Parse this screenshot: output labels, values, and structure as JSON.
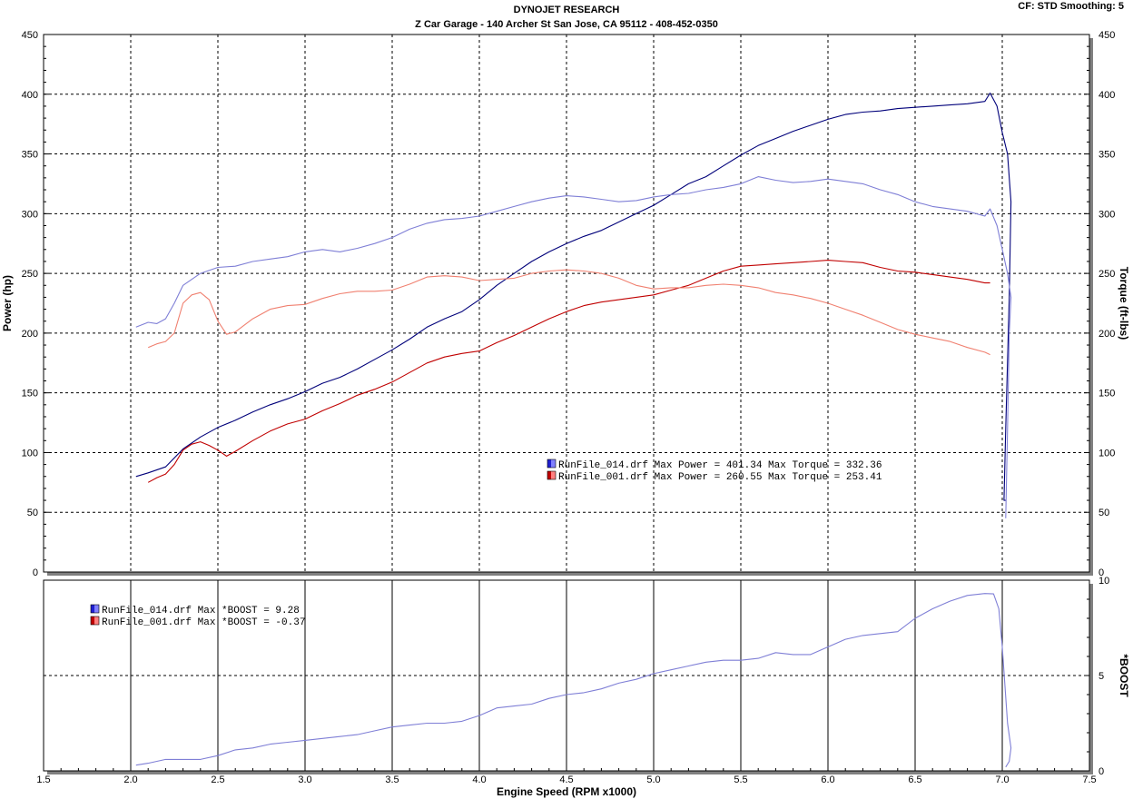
{
  "header": {
    "title": "DYNOJET RESEARCH",
    "subtitle": "Z Car Garage - 140 Archer St San Jose, CA 95112 - 408-452-0350",
    "settings": "CF: STD  Smoothing: 5"
  },
  "colors": {
    "run014": "#00007a",
    "run014_torque": "#7f7fd6",
    "run001": "#c00000",
    "run001_torque": "#f08070",
    "boost": "#7f7fd6",
    "grid": "#000000"
  },
  "chart_data": [
    {
      "type": "line",
      "title": "DYNOJET RESEARCH",
      "xlabel": "Engine Speed (RPM x1000)",
      "ylabel": "Power (hp)",
      "y2label": "Torque (ft-lbs)",
      "xlim": [
        1.5,
        7.5
      ],
      "ylim": [
        0,
        450
      ],
      "y2lim": [
        0,
        450
      ],
      "x_ticks": [
        "1.5",
        "2.0",
        "2.5",
        "3.0",
        "3.5",
        "4.0",
        "4.5",
        "5.0",
        "5.5",
        "6.0",
        "6.5",
        "7.0",
        "7.5"
      ],
      "y_ticks": [
        "0",
        "50",
        "100",
        "150",
        "200",
        "250",
        "300",
        "350",
        "400",
        "450"
      ],
      "y2_ticks": [
        "0",
        "50",
        "100",
        "150",
        "200",
        "250",
        "300",
        "350",
        "400",
        "450"
      ],
      "grid": true,
      "legend": [
        {
          "file": "RunFile_014.drf",
          "text": "RunFile_014.drf Max Power = 401.34     Max Torque = 332.36"
        },
        {
          "file": "RunFile_001.drf",
          "text": "RunFile_001.drf Max Power = 260.55     Max Torque = 253.41"
        }
      ],
      "series": [
        {
          "name": "RunFile_014.drf Power",
          "x": [
            2.03,
            2.1,
            2.2,
            2.3,
            2.4,
            2.5,
            2.6,
            2.7,
            2.8,
            2.9,
            3.0,
            3.1,
            3.2,
            3.3,
            3.4,
            3.5,
            3.6,
            3.7,
            3.8,
            3.9,
            4.0,
            4.1,
            4.2,
            4.3,
            4.4,
            4.5,
            4.6,
            4.7,
            4.8,
            4.9,
            5.0,
            5.1,
            5.2,
            5.3,
            5.4,
            5.5,
            5.6,
            5.7,
            5.8,
            5.9,
            6.0,
            6.1,
            6.2,
            6.3,
            6.4,
            6.5,
            6.6,
            6.7,
            6.8,
            6.9,
            6.93,
            6.97,
            7.0,
            7.03,
            7.05,
            7.04,
            7.02,
            7.01,
            7.02
          ],
          "y": [
            80,
            83,
            88,
            103,
            113,
            121,
            127,
            134,
            140,
            145,
            151,
            158,
            163,
            170,
            178,
            186,
            195,
            205,
            212,
            218,
            228,
            240,
            250,
            260,
            268,
            275,
            281,
            286,
            293,
            300,
            307,
            316,
            325,
            331,
            340,
            349,
            357,
            363,
            369,
            374,
            379,
            383,
            385,
            386,
            388,
            389,
            390,
            391,
            392,
            394,
            401,
            390,
            368,
            350,
            310,
            230,
            120,
            60,
            60
          ]
        },
        {
          "name": "RunFile_014.drf Torque",
          "x": [
            2.03,
            2.1,
            2.15,
            2.2,
            2.25,
            2.3,
            2.4,
            2.5,
            2.6,
            2.7,
            2.8,
            2.9,
            3.0,
            3.1,
            3.2,
            3.3,
            3.4,
            3.5,
            3.6,
            3.7,
            3.8,
            3.9,
            4.0,
            4.1,
            4.2,
            4.3,
            4.4,
            4.5,
            4.6,
            4.7,
            4.8,
            4.9,
            5.0,
            5.1,
            5.2,
            5.3,
            5.4,
            5.5,
            5.6,
            5.7,
            5.8,
            5.9,
            6.0,
            6.1,
            6.2,
            6.3,
            6.4,
            6.5,
            6.6,
            6.7,
            6.8,
            6.9,
            6.93,
            6.97,
            7.0,
            7.03,
            7.05,
            7.04,
            7.03,
            7.02
          ],
          "y": [
            205,
            209,
            208,
            212,
            225,
            240,
            250,
            255,
            256,
            260,
            262,
            264,
            268,
            270,
            268,
            271,
            275,
            280,
            287,
            292,
            295,
            296,
            298,
            302,
            306,
            310,
            313,
            315,
            314,
            312,
            310,
            311,
            314,
            316,
            317,
            320,
            322,
            325,
            331,
            328,
            326,
            327,
            329,
            327,
            325,
            320,
            316,
            310,
            306,
            304,
            302,
            298,
            304,
            290,
            270,
            250,
            230,
            200,
            120,
            45
          ]
        },
        {
          "name": "RunFile_001.drf Power",
          "x": [
            2.1,
            2.15,
            2.2,
            2.25,
            2.3,
            2.35,
            2.4,
            2.45,
            2.5,
            2.55,
            2.6,
            2.7,
            2.8,
            2.9,
            3.0,
            3.1,
            3.2,
            3.3,
            3.4,
            3.5,
            3.6,
            3.7,
            3.8,
            3.9,
            4.0,
            4.1,
            4.2,
            4.3,
            4.4,
            4.5,
            4.6,
            4.7,
            4.8,
            4.9,
            5.0,
            5.1,
            5.2,
            5.3,
            5.4,
            5.5,
            5.6,
            5.7,
            5.8,
            5.9,
            6.0,
            6.1,
            6.2,
            6.3,
            6.4,
            6.5,
            6.6,
            6.7,
            6.8,
            6.9,
            6.93
          ],
          "y": [
            75,
            79,
            82,
            90,
            102,
            107,
            109,
            106,
            102,
            97,
            101,
            110,
            118,
            124,
            128,
            135,
            141,
            148,
            153,
            159,
            167,
            175,
            180,
            183,
            185,
            192,
            198,
            205,
            212,
            218,
            223,
            226,
            228,
            230,
            232,
            236,
            240,
            246,
            252,
            256,
            257,
            258,
            259,
            260,
            261,
            260,
            259,
            255,
            252,
            251,
            249,
            247,
            245,
            242,
            242
          ]
        },
        {
          "name": "RunFile_001.drf Torque",
          "x": [
            2.1,
            2.15,
            2.2,
            2.25,
            2.3,
            2.35,
            2.4,
            2.45,
            2.5,
            2.55,
            2.6,
            2.7,
            2.8,
            2.9,
            3.0,
            3.1,
            3.2,
            3.3,
            3.4,
            3.5,
            3.6,
            3.7,
            3.8,
            3.9,
            4.0,
            4.1,
            4.2,
            4.3,
            4.4,
            4.5,
            4.6,
            4.7,
            4.8,
            4.9,
            5.0,
            5.1,
            5.2,
            5.3,
            5.4,
            5.5,
            5.6,
            5.7,
            5.8,
            5.9,
            6.0,
            6.1,
            6.2,
            6.3,
            6.4,
            6.5,
            6.6,
            6.7,
            6.8,
            6.9,
            6.93
          ],
          "y": [
            188,
            191,
            193,
            200,
            225,
            232,
            234,
            228,
            210,
            199,
            201,
            212,
            220,
            223,
            224,
            229,
            233,
            235,
            235,
            236,
            241,
            247,
            248,
            247,
            244,
            245,
            246,
            250,
            252,
            253,
            252,
            250,
            246,
            240,
            237,
            238,
            238,
            240,
            241,
            240,
            238,
            234,
            232,
            229,
            225,
            220,
            215,
            209,
            203,
            199,
            196,
            193,
            188,
            184,
            182
          ]
        }
      ]
    },
    {
      "type": "line",
      "title": "",
      "xlabel": "Engine Speed (RPM x1000)",
      "ylabel": "",
      "y2label": "*BOOST",
      "xlim": [
        1.5,
        7.5
      ],
      "y2lim": [
        0,
        10
      ],
      "y2_ticks": [
        "0",
        "5",
        "10"
      ],
      "grid": true,
      "legend": [
        {
          "file": "RunFile_014.drf",
          "text": "RunFile_014.drf Max *BOOST = 9.28"
        },
        {
          "file": "RunFile_001.drf",
          "text": "RunFile_001.drf Max *BOOST = -0.37"
        }
      ],
      "series": [
        {
          "name": "RunFile_014.drf *BOOST",
          "x": [
            2.03,
            2.1,
            2.2,
            2.3,
            2.4,
            2.5,
            2.6,
            2.7,
            2.8,
            2.9,
            3.0,
            3.1,
            3.2,
            3.3,
            3.4,
            3.5,
            3.6,
            3.7,
            3.8,
            3.9,
            4.0,
            4.1,
            4.2,
            4.3,
            4.4,
            4.5,
            4.6,
            4.7,
            4.8,
            4.9,
            5.0,
            5.1,
            5.2,
            5.3,
            5.4,
            5.5,
            5.6,
            5.7,
            5.8,
            5.9,
            6.0,
            6.1,
            6.2,
            6.3,
            6.4,
            6.5,
            6.6,
            6.7,
            6.8,
            6.9,
            6.95,
            6.98,
            7.0,
            7.03,
            7.05,
            7.04,
            7.02
          ],
          "y": [
            0.3,
            0.4,
            0.6,
            0.6,
            0.6,
            0.8,
            1.1,
            1.2,
            1.4,
            1.5,
            1.6,
            1.7,
            1.8,
            1.9,
            2.1,
            2.3,
            2.4,
            2.5,
            2.5,
            2.6,
            2.9,
            3.3,
            3.4,
            3.5,
            3.8,
            4.0,
            4.1,
            4.3,
            4.6,
            4.8,
            5.1,
            5.3,
            5.5,
            5.7,
            5.8,
            5.8,
            5.9,
            6.2,
            6.1,
            6.1,
            6.5,
            6.9,
            7.1,
            7.2,
            7.3,
            8.0,
            8.5,
            8.9,
            9.2,
            9.3,
            9.28,
            8.5,
            6.5,
            2.5,
            1.2,
            0.5,
            0.2
          ]
        }
      ]
    }
  ]
}
